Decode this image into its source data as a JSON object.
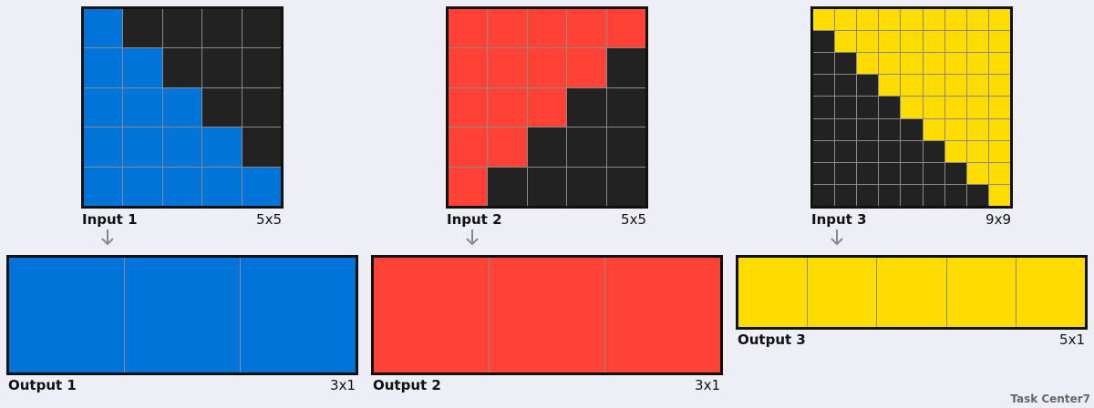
{
  "colors": {
    "blue": "#0074d9",
    "red": "#ff4136",
    "yellow": "#ffdc00",
    "black": "#222222",
    "grid_line": "#8a8a8a",
    "arrow": "#888888"
  },
  "pairs": [
    {
      "input_label": "Input 1",
      "input_size": "5x5",
      "input_grid": [
        [
          1,
          0,
          0,
          0,
          0
        ],
        [
          1,
          1,
          0,
          0,
          0
        ],
        [
          1,
          1,
          1,
          0,
          0
        ],
        [
          1,
          1,
          1,
          1,
          0
        ],
        [
          1,
          1,
          1,
          1,
          1
        ]
      ],
      "input_color": "blue",
      "output_label": "Output 1",
      "output_size": "3x1",
      "output_grid": [
        [
          1,
          1,
          1
        ]
      ],
      "output_color": "blue"
    },
    {
      "input_label": "Input 2",
      "input_size": "5x5",
      "input_grid": [
        [
          1,
          1,
          1,
          1,
          1
        ],
        [
          1,
          1,
          1,
          1,
          0
        ],
        [
          1,
          1,
          1,
          0,
          0
        ],
        [
          1,
          1,
          0,
          0,
          0
        ],
        [
          1,
          0,
          0,
          0,
          0
        ]
      ],
      "input_color": "red",
      "output_label": "Output 2",
      "output_size": "3x1",
      "output_grid": [
        [
          1,
          1,
          1
        ]
      ],
      "output_color": "red"
    },
    {
      "input_label": "Input 3",
      "input_size": "9x9",
      "input_grid": [
        [
          1,
          1,
          1,
          1,
          1,
          1,
          1,
          1,
          1
        ],
        [
          0,
          1,
          1,
          1,
          1,
          1,
          1,
          1,
          1
        ],
        [
          0,
          0,
          1,
          1,
          1,
          1,
          1,
          1,
          1
        ],
        [
          0,
          0,
          0,
          1,
          1,
          1,
          1,
          1,
          1
        ],
        [
          0,
          0,
          0,
          0,
          1,
          1,
          1,
          1,
          1
        ],
        [
          0,
          0,
          0,
          0,
          0,
          1,
          1,
          1,
          1
        ],
        [
          0,
          0,
          0,
          0,
          0,
          0,
          1,
          1,
          1
        ],
        [
          0,
          0,
          0,
          0,
          0,
          0,
          0,
          1,
          1
        ],
        [
          0,
          0,
          0,
          0,
          0,
          0,
          0,
          0,
          1
        ]
      ],
      "input_color": "yellow",
      "output_label": "Output 3",
      "output_size": "5x1",
      "output_grid": [
        [
          1,
          1,
          1,
          1,
          1
        ]
      ],
      "output_color": "yellow"
    }
  ],
  "footer": "Task Center7"
}
